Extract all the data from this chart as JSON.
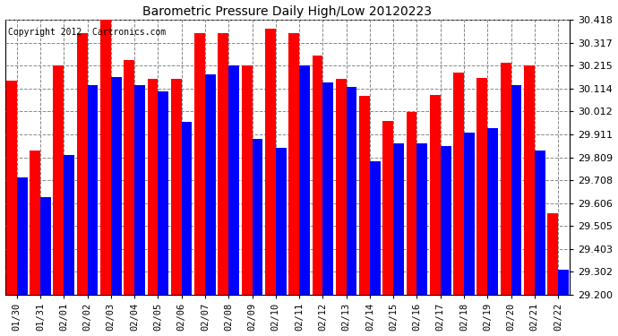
{
  "title": "Barometric Pressure Daily High/Low 20120223",
  "copyright": "Copyright 2012  Cartronics.com",
  "dates": [
    "01/30",
    "01/31",
    "02/01",
    "02/02",
    "02/03",
    "02/04",
    "02/05",
    "02/06",
    "02/07",
    "02/08",
    "02/09",
    "02/10",
    "02/11",
    "02/12",
    "02/13",
    "02/14",
    "02/15",
    "02/16",
    "02/17",
    "02/18",
    "02/19",
    "02/20",
    "02/21",
    "02/22"
  ],
  "highs": [
    30.15,
    29.84,
    30.215,
    30.36,
    30.418,
    30.24,
    30.155,
    30.155,
    30.36,
    30.36,
    30.215,
    30.38,
    30.36,
    30.26,
    30.155,
    30.08,
    29.97,
    30.01,
    30.085,
    30.185,
    30.16,
    30.23,
    30.215,
    29.56
  ],
  "lows": [
    29.72,
    29.635,
    29.82,
    30.13,
    30.165,
    30.13,
    30.1,
    29.965,
    30.175,
    30.215,
    29.89,
    29.85,
    30.215,
    30.14,
    30.12,
    29.79,
    29.87,
    29.87,
    29.86,
    29.92,
    29.94,
    30.13,
    29.84,
    29.31
  ],
  "high_color": "#ff0000",
  "low_color": "#0000ff",
  "bg_color": "#ffffff",
  "grid_color": "#888888",
  "ymin": 29.2,
  "ymax": 30.418,
  "yticks": [
    29.2,
    29.302,
    29.403,
    29.505,
    29.606,
    29.708,
    29.809,
    29.911,
    30.012,
    30.114,
    30.215,
    30.317,
    30.418
  ]
}
